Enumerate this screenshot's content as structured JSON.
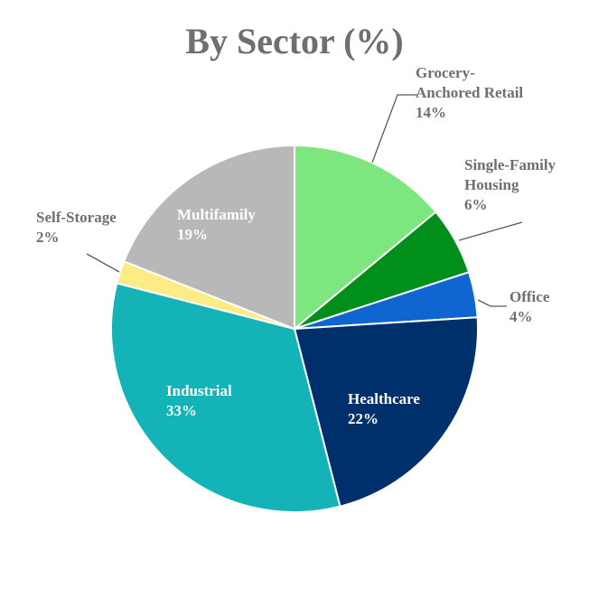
{
  "chart_data": {
    "type": "pie",
    "title": "By Sector (%)",
    "slices": [
      {
        "name": "Grocery-Anchored Retail",
        "label_lines": [
          "Grocery-",
          "Anchored Retail",
          "14%"
        ],
        "value": 14,
        "color": "#7ee67e",
        "label_position": "outside"
      },
      {
        "name": "Single-Family Housing",
        "label_lines": [
          "Single-Family",
          "Housing",
          "6%"
        ],
        "value": 6,
        "color": "#008f1a",
        "label_position": "outside"
      },
      {
        "name": "Office",
        "label_lines": [
          "Office",
          "4%"
        ],
        "value": 4,
        "color": "#0f66d0",
        "label_position": "outside"
      },
      {
        "name": "Healthcare",
        "label_lines": [
          "Healthcare",
          "22%"
        ],
        "value": 22,
        "color": "#00306b",
        "label_position": "inside"
      },
      {
        "name": "Industrial",
        "label_lines": [
          "Industrial",
          "33%"
        ],
        "value": 33,
        "color": "#13b3b8",
        "label_position": "inside"
      },
      {
        "name": "Self-Storage",
        "label_lines": [
          "Self-Storage",
          "2%"
        ],
        "value": 2,
        "color": "#fdec86",
        "label_position": "outside"
      },
      {
        "name": "Multifamily",
        "label_lines": [
          "Multifamily",
          "19%"
        ],
        "value": 19,
        "color": "#b8b8b8",
        "label_position": "inside"
      }
    ],
    "legend": "none"
  }
}
